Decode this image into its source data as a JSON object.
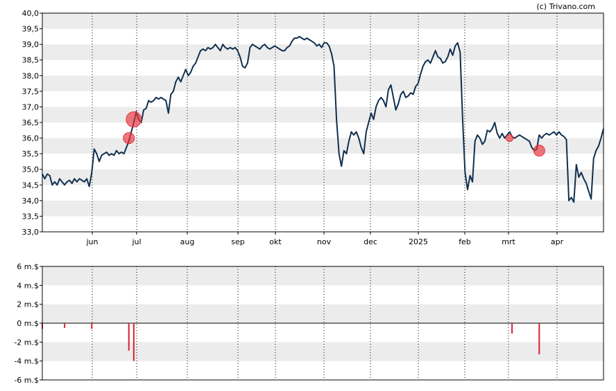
{
  "copyright": "(c) Trivano.com",
  "colors": {
    "band": "#ececec",
    "price_line": "#0f2f4f",
    "marker": "#e8323c",
    "volume_bar": "#d9202e",
    "axis": "#000000",
    "month_grid": "#000000"
  },
  "chart_data": [
    {
      "type": "line",
      "name": "price",
      "ylim": [
        33.0,
        40.0
      ],
      "y_ticks": [
        "33,0",
        "33,5",
        "34,0",
        "34,5",
        "35,0",
        "35,5",
        "36,0",
        "36,5",
        "37,0",
        "37,5",
        "38,0",
        "38,5",
        "39,0",
        "39,5",
        "40,0"
      ],
      "x_ticks": [
        "jun",
        "jul",
        "aug",
        "sep",
        "okt",
        "nov",
        "dec",
        "2025",
        "feb",
        "mrt",
        "apr"
      ],
      "grid": "alternating horizontal bands, dotted vertical month lines",
      "series": [
        {
          "values": [
            34.85,
            34.7,
            34.85,
            34.8,
            34.5,
            34.6,
            34.5,
            34.7,
            34.6,
            34.5,
            34.6,
            34.65,
            34.55,
            34.7,
            34.6,
            34.7,
            34.65,
            34.6,
            34.7,
            34.45,
            34.9,
            35.65,
            35.5,
            35.25,
            35.45,
            35.5,
            35.55,
            35.45,
            35.5,
            35.45,
            35.6,
            35.5,
            35.55,
            35.5,
            35.7,
            35.9,
            36.2,
            36.5,
            36.85,
            36.6,
            36.5,
            36.9,
            36.95,
            37.2,
            37.15,
            37.2,
            37.3,
            37.25,
            37.3,
            37.25,
            37.2,
            36.8,
            37.4,
            37.5,
            37.8,
            37.95,
            37.8,
            38.0,
            38.2,
            38.0,
            38.1,
            38.3,
            38.4,
            38.6,
            38.8,
            38.85,
            38.8,
            38.9,
            38.85,
            38.9,
            39.0,
            38.9,
            38.8,
            39.0,
            38.9,
            38.85,
            38.9,
            38.85,
            38.9,
            38.8,
            38.6,
            38.3,
            38.25,
            38.4,
            38.9,
            39.0,
            38.95,
            38.9,
            38.85,
            38.95,
            39.0,
            38.9,
            38.85,
            38.9,
            38.95,
            38.9,
            38.85,
            38.8,
            38.8,
            38.9,
            38.95,
            39.1,
            39.2,
            39.2,
            39.25,
            39.2,
            39.15,
            39.2,
            39.15,
            39.1,
            39.05,
            38.95,
            39.0,
            38.9,
            39.05,
            39.05,
            38.95,
            38.7,
            38.3,
            36.6,
            35.5,
            35.1,
            35.6,
            35.5,
            35.9,
            36.2,
            36.1,
            36.2,
            36.0,
            35.7,
            35.5,
            36.2,
            36.5,
            36.8,
            36.6,
            37.0,
            37.2,
            37.3,
            37.2,
            37.0,
            37.55,
            37.7,
            37.3,
            36.9,
            37.1,
            37.4,
            37.5,
            37.3,
            37.35,
            37.45,
            37.4,
            37.65,
            37.75,
            38.05,
            38.3,
            38.45,
            38.5,
            38.4,
            38.6,
            38.8,
            38.6,
            38.55,
            38.4,
            38.45,
            38.6,
            38.85,
            38.65,
            38.95,
            39.05,
            38.75,
            36.6,
            34.9,
            34.35,
            34.8,
            34.6,
            35.9,
            36.1,
            36.0,
            35.8,
            35.9,
            36.25,
            36.2,
            36.3,
            36.5,
            36.15,
            36.0,
            36.15,
            36.0,
            36.1,
            36.2,
            36.05,
            36.0,
            36.05,
            36.1,
            36.05,
            36.0,
            35.95,
            35.9,
            35.7,
            35.6,
            35.65,
            36.1,
            36.0,
            36.1,
            36.15,
            36.1,
            36.15,
            36.2,
            36.1,
            36.2,
            36.1,
            36.05,
            35.95,
            34.0,
            34.1,
            33.95,
            35.15,
            34.75,
            34.9,
            34.7,
            34.55,
            34.3,
            34.05,
            35.35,
            35.6,
            35.75,
            36.0,
            36.3
          ]
        }
      ],
      "markers": [
        {
          "index": 35,
          "value": 36.0,
          "size": 2
        },
        {
          "index": 37,
          "value": 36.6,
          "size": 3
        },
        {
          "index": 189,
          "value": 36.0,
          "size": 1
        },
        {
          "index": 201,
          "value": 35.6,
          "size": 2
        }
      ]
    },
    {
      "type": "bar",
      "name": "net flow",
      "ylim": [
        -6,
        6
      ],
      "y_ticks": [
        "-6 m.$",
        "-4 m.$",
        "-2 m.$",
        "0 m.$",
        "2 m.$",
        "4 m.$",
        "6 m.$"
      ],
      "series": [
        {
          "points": [
            {
              "index": 0,
              "value": -0.6
            },
            {
              "index": 9,
              "value": -0.5
            },
            {
              "index": 20,
              "value": -0.6
            },
            {
              "index": 35,
              "value": -2.9
            },
            {
              "index": 37,
              "value": -4.0
            },
            {
              "index": 190,
              "value": -1.1
            },
            {
              "index": 201,
              "value": -3.3
            }
          ]
        }
      ]
    }
  ]
}
